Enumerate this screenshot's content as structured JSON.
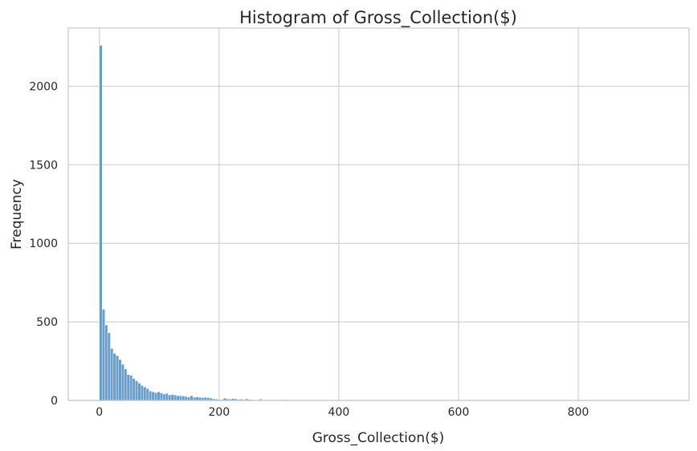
{
  "chart_data": {
    "type": "bar",
    "title": "Histogram of Gross_Collection($)",
    "xlabel": "Gross_Collection($)",
    "ylabel": "Frequency",
    "xlim": [
      -52,
      985
    ],
    "ylim": [
      0,
      2370
    ],
    "xticks": [
      0,
      200,
      400,
      600,
      800
    ],
    "yticks": [
      0,
      500,
      1000,
      1500,
      2000
    ],
    "grid": true,
    "legend": "none",
    "bar_color": "#6a9ec8",
    "bin_width": 4.6,
    "bin_start": 0,
    "values": [
      2260,
      580,
      480,
      430,
      330,
      300,
      285,
      260,
      230,
      200,
      165,
      160,
      140,
      125,
      110,
      95,
      85,
      75,
      60,
      55,
      50,
      55,
      48,
      40,
      45,
      35,
      38,
      35,
      30,
      30,
      28,
      25,
      22,
      30,
      20,
      22,
      20,
      18,
      20,
      18,
      15,
      10,
      8,
      6,
      5,
      15,
      10,
      8,
      12,
      10,
      6,
      8,
      5,
      10,
      6,
      5,
      4,
      3,
      8,
      4,
      3,
      2,
      5,
      3,
      2,
      3,
      2,
      6,
      3,
      2,
      2,
      3,
      2,
      2,
      3,
      2,
      2,
      2,
      2,
      2,
      2,
      3,
      2,
      2,
      2,
      2,
      2,
      2,
      2,
      2,
      2,
      2,
      1,
      1,
      1,
      1,
      1,
      1,
      1,
      1
    ]
  }
}
